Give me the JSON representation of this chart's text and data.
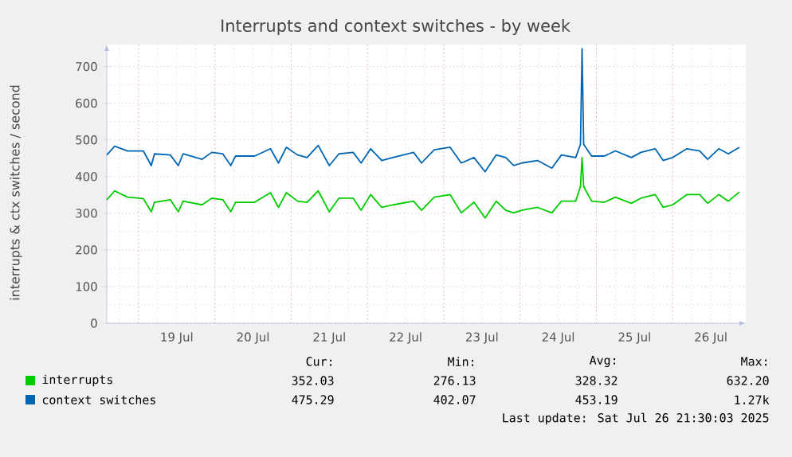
{
  "chart_data": {
    "type": "line",
    "title": "Interrupts and context switches - by week",
    "ylabel": "interrupts & ctx switches / second",
    "x": [
      "2025-07-18T14:00",
      "2025-07-18T16:30",
      "2025-07-18T20:30",
      "2025-07-19T01:30",
      "2025-07-19T04:00",
      "2025-07-19T05:00",
      "2025-07-19T10:00",
      "2025-07-19T12:30",
      "2025-07-19T14:00",
      "2025-07-19T20:00",
      "2025-07-19T23:00",
      "2025-07-20T02:30",
      "2025-07-20T05:00",
      "2025-07-20T06:30",
      "2025-07-20T12:30",
      "2025-07-20T17:30",
      "2025-07-20T20:00",
      "2025-07-20T22:30",
      "2025-07-21T02:00",
      "2025-07-21T05:00",
      "2025-07-21T08:30",
      "2025-07-21T12:00",
      "2025-07-21T15:00",
      "2025-07-21T19:30",
      "2025-07-21T22:00",
      "2025-07-22T01:00",
      "2025-07-22T04:30",
      "2025-07-22T08:00",
      "2025-07-22T14:30",
      "2025-07-22T17:00",
      "2025-07-22T21:00",
      "2025-07-23T02:00",
      "2025-07-23T05:30",
      "2025-07-23T09:30",
      "2025-07-23T13:00",
      "2025-07-23T16:30",
      "2025-07-23T19:30",
      "2025-07-23T22:00",
      "2025-07-24T00:30",
      "2025-07-24T05:30",
      "2025-07-24T10:00",
      "2025-07-24T13:00",
      "2025-07-24T17:30",
      "2025-07-24T19:00",
      "2025-07-24T19:30",
      "2025-07-24T20:00",
      "2025-07-24T22:30",
      "2025-07-25T02:30",
      "2025-07-25T06:00",
      "2025-07-25T11:00",
      "2025-07-25T14:00",
      "2025-07-25T18:30",
      "2025-07-25T21:00",
      "2025-07-26T00:00",
      "2025-07-26T04:30",
      "2025-07-26T08:30",
      "2025-07-26T11:00",
      "2025-07-26T14:30",
      "2025-07-26T17:30",
      "2025-07-26T21:00"
    ],
    "series": [
      {
        "name": "interrupts",
        "color": "#00cc00",
        "values": [
          337,
          361,
          344,
          340,
          304,
          330,
          337,
          304,
          333,
          323,
          341,
          337,
          304,
          330,
          330,
          356,
          316,
          356,
          333,
          330,
          361,
          304,
          341,
          341,
          308,
          351,
          316,
          323,
          333,
          308,
          344,
          351,
          301,
          330,
          287,
          333,
          308,
          301,
          308,
          316,
          301,
          333,
          333,
          373,
          452,
          373,
          333,
          330,
          344,
          327,
          341,
          351,
          316,
          323,
          351,
          351,
          327,
          351,
          333,
          358
        ]
      },
      {
        "name": "context switches",
        "color": "#0066b3",
        "values": [
          459,
          483,
          470,
          470,
          430,
          462,
          459,
          430,
          462,
          447,
          466,
          462,
          430,
          456,
          456,
          476,
          437,
          480,
          459,
          452,
          485,
          430,
          462,
          466,
          437,
          476,
          444,
          452,
          466,
          437,
          473,
          480,
          437,
          452,
          413,
          459,
          452,
          430,
          437,
          444,
          423,
          459,
          452,
          488,
          749,
          488,
          456,
          456,
          470,
          452,
          466,
          476,
          444,
          452,
          476,
          470,
          447,
          476,
          462,
          480
        ]
      }
    ],
    "xlim": [
      "2025-07-18T14:00",
      "2025-07-26T23:00"
    ],
    "xticks": [
      {
        "value": "2025-07-19T00:00",
        "label": null
      },
      {
        "value": "2025-07-19T12:00",
        "label": "19 Jul"
      },
      {
        "value": "2025-07-20T00:00",
        "label": null
      },
      {
        "value": "2025-07-20T12:00",
        "label": "20 Jul"
      },
      {
        "value": "2025-07-21T00:00",
        "label": null
      },
      {
        "value": "2025-07-21T12:00",
        "label": "21 Jul"
      },
      {
        "value": "2025-07-22T00:00",
        "label": null
      },
      {
        "value": "2025-07-22T12:00",
        "label": "22 Jul"
      },
      {
        "value": "2025-07-23T00:00",
        "label": null
      },
      {
        "value": "2025-07-23T12:00",
        "label": "23 Jul"
      },
      {
        "value": "2025-07-24T00:00",
        "label": null
      },
      {
        "value": "2025-07-24T12:00",
        "label": "24 Jul"
      },
      {
        "value": "2025-07-25T00:00",
        "label": null
      },
      {
        "value": "2025-07-25T12:00",
        "label": "25 Jul"
      },
      {
        "value": "2025-07-26T00:00",
        "label": null
      },
      {
        "value": "2025-07-26T12:00",
        "label": "26 Jul"
      }
    ],
    "ylim": [
      0,
      760
    ],
    "yticks": [
      0,
      100,
      200,
      300,
      400,
      500,
      600,
      700
    ],
    "grid": true,
    "legend": "bottom",
    "annotations": [
      "Cur:",
      "Min:",
      "Avg:",
      "Max:",
      "352.03",
      "276.13",
      "328.32",
      "632.20",
      "475.29",
      "402.07",
      "453.19",
      "1.27k",
      "Last update: Sat Jul 26 21:30:03 2025"
    ]
  }
}
